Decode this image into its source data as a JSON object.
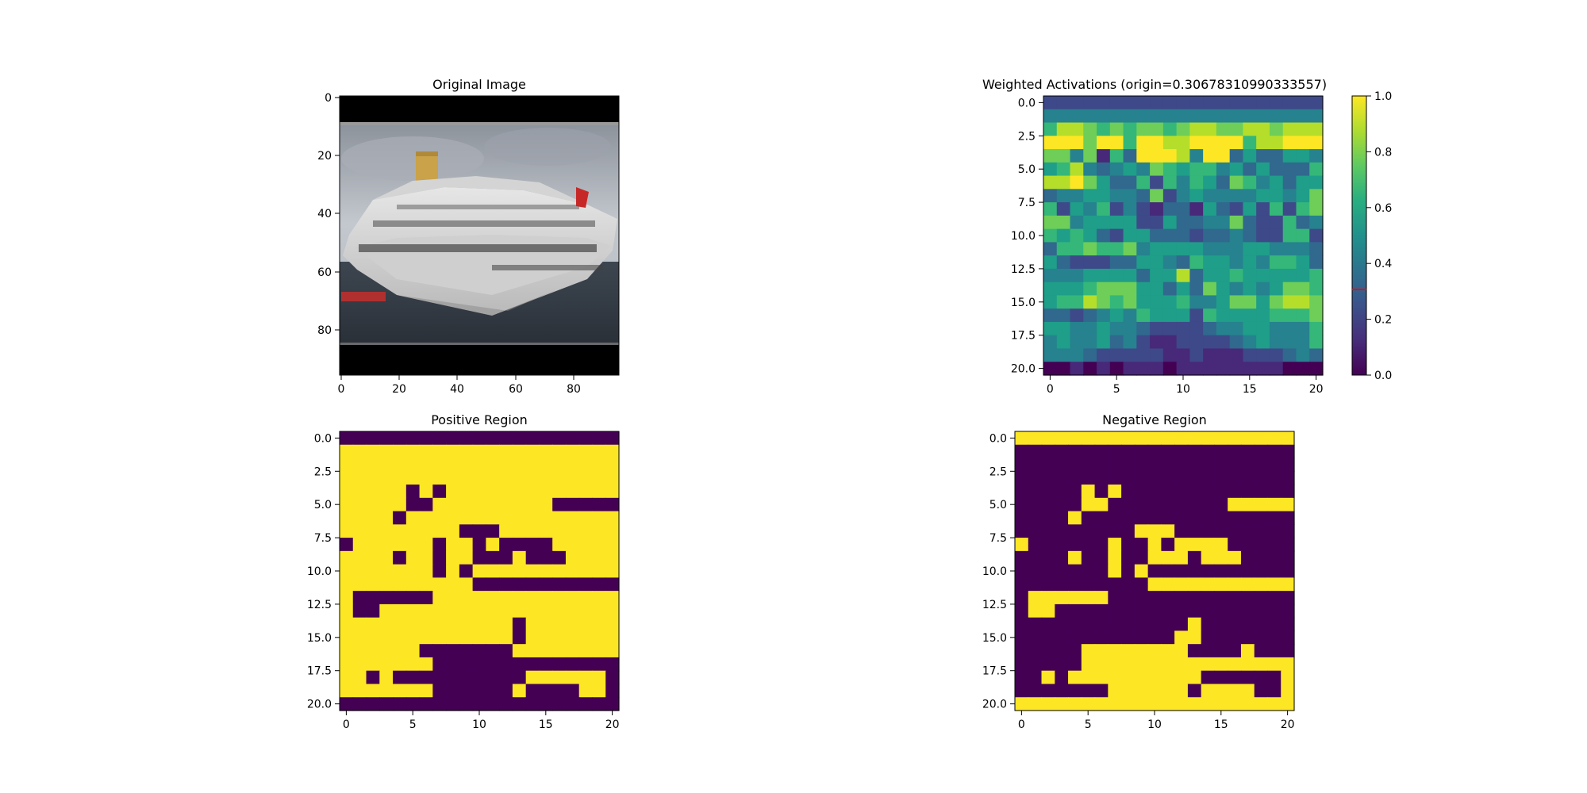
{
  "chart_data": [
    {
      "type": "heatmap",
      "title": "Original Image",
      "x_ticks": [
        "0",
        "20",
        "40",
        "60",
        "80"
      ],
      "y_ticks": [
        "0",
        "20",
        "40",
        "60",
        "80"
      ],
      "x_range": [
        -0.5,
        95.5
      ],
      "y_range": [
        -0.5,
        95.5
      ],
      "image_content": "photo of a white cruise ship with black letterbox bars"
    },
    {
      "type": "heatmap",
      "title": "Weighted Activations (origin=0.30678310990333557)",
      "x_ticks": [
        "0",
        "5",
        "10",
        "15",
        "20"
      ],
      "y_ticks": [
        "0.0",
        "2.5",
        "5.0",
        "7.5",
        "10.0",
        "12.5",
        "15.0",
        "17.5",
        "20.0"
      ],
      "x_range": [
        -0.5,
        20.5
      ],
      "y_range": [
        -0.5,
        20.5
      ],
      "colormap": "viridis",
      "colorbar_ticks": [
        "0.0",
        "0.2",
        "0.4",
        "0.6",
        "0.8",
        "1.0"
      ],
      "colorbar_range": [
        0,
        1
      ],
      "colorbar_marker": 0.30678310990333557,
      "marker_color": "#ff0000",
      "grid": [
        "222222222222222222222",
        "444444444444444444444",
        "688767677678877887888",
        "999799699889999688999",
        "774716399984993533554",
        "568434547656645353336",
        "889753362646537645355",
        "344554437245444455457",
        "625462421331532526267",
        "774555522533447322634",
        "656532553332334322662",
        "366766745555444554443",
        "532223355436554546653",
        "444555535583556555556",
        "555677755353754545776",
        "566876755564457757887",
        "332345465552655556667",
        "554454432222344554446",
        "454453421122223454446",
        "444322222112111222343",
        "001010111011111111000"
      ]
    },
    {
      "type": "heatmap",
      "title": "Positive Region",
      "x_ticks": [
        "0",
        "5",
        "10",
        "15",
        "20"
      ],
      "y_ticks": [
        "0.0",
        "2.5",
        "5.0",
        "7.5",
        "10.0",
        "12.5",
        "15.0",
        "17.5",
        "20.0"
      ],
      "x_range": [
        -0.5,
        20.5
      ],
      "y_range": [
        -0.5,
        20.5
      ],
      "high_color": "#fde725",
      "low_color": "#440154",
      "grid": [
        "000000000000000000000",
        "111111111111111111111",
        "111111111111111111111",
        "111111111111111111111",
        "111110101111111111111",
        "111110011111111100000",
        "111101111111111111111",
        "111111111000111111111",
        "011111101101000011111",
        "111101101100010001111",
        "111111101011111111111",
        "111111111100000000000",
        "100000011111111111111",
        "100111111111111111111",
        "111111111111101111111",
        "111111111111101111111",
        "111111000000011111111",
        "111111100000000000000",
        "110100000000001111110",
        "111111100000010000110",
        "000000000000000000000"
      ]
    },
    {
      "type": "heatmap",
      "title": "Negative Region",
      "x_ticks": [
        "0",
        "5",
        "10",
        "15",
        "20"
      ],
      "y_ticks": [
        "0.0",
        "2.5",
        "5.0",
        "7.5",
        "10.0",
        "12.5",
        "15.0",
        "17.5",
        "20.0"
      ],
      "x_range": [
        -0.5,
        20.5
      ],
      "y_range": [
        -0.5,
        20.5
      ],
      "high_color": "#fde725",
      "low_color": "#440154",
      "grid": [
        "111111111111111111111",
        "000000000000000000000",
        "000000000000000000000",
        "000000000000000000000",
        "000001010000000000000",
        "000001100000000011111",
        "000010000000000000000",
        "000000000111000000000",
        "100000010010111100000",
        "000010010011101110000",
        "000000010100000000000",
        "000000000011111111111",
        "011111100000000000000",
        "011000000000000000000",
        "000000000000010000000",
        "000000000000110000000",
        "000001111111100001000",
        "000001111111111111111",
        "001011111111110000001",
        "000000011111101111001",
        "111111111111111111111"
      ]
    }
  ]
}
